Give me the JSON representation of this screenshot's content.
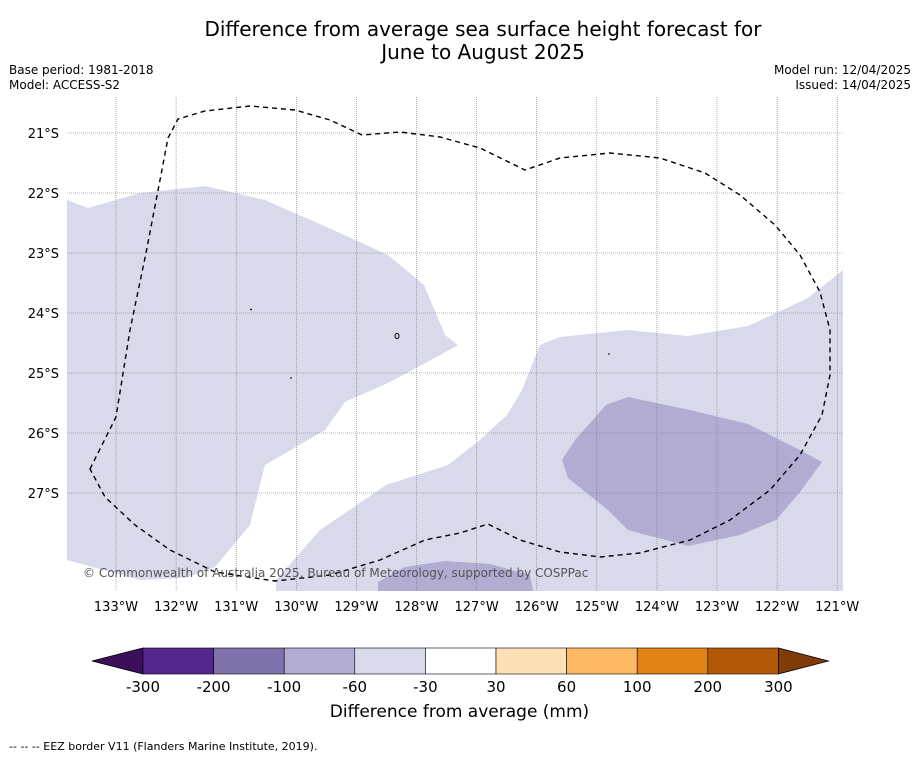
{
  "header": {
    "title_line1": "Difference from average sea surface height forecast for",
    "title_line2": "June to August 2025",
    "base_period": "Base period: 1981-2018",
    "model": "Model: ACCESS-S2",
    "model_run": "Model run: 12/04/2025",
    "issued": "Issued: 14/04/2025"
  },
  "map": {
    "latitude_labels": [
      "21°S",
      "22°S",
      "23°S",
      "24°S",
      "25°S",
      "26°S",
      "27°S"
    ],
    "longitude_labels": [
      "133°W",
      "132°W",
      "131°W",
      "130°W",
      "129°W",
      "128°W",
      "127°W",
      "126°W",
      "125°W",
      "124°W",
      "123°W",
      "122°W",
      "121°W"
    ],
    "copyright": "© Commonwealth of Australia 2025, Bureau of Meteorology, supported by COSPPac"
  },
  "colorbar": {
    "title": "Difference from average (mm)",
    "tick_labels": [
      "-300",
      "-200",
      "-100",
      "-60",
      "-30",
      "30",
      "60",
      "100",
      "200",
      "300"
    ],
    "colors": [
      "#3b0f5a",
      "#54278f",
      "#8073ac",
      "#b2abd2",
      "#d8daeb",
      "#ffffff",
      "#fee0b6",
      "#fdb863",
      "#e08214",
      "#b35806",
      "#7f3b08"
    ]
  },
  "footer": {
    "legend": "--  --  -- EEZ border V11 (Flanders Marine Institute, 2019)."
  }
}
